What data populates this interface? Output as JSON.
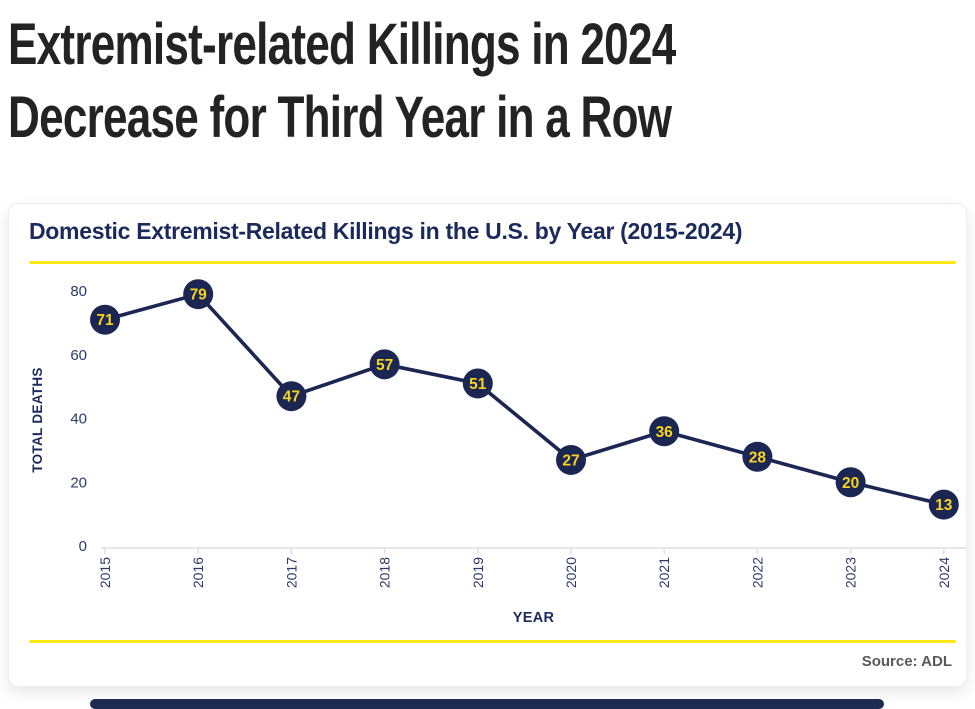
{
  "page": {
    "headline": "Extremist-related Killings in 2024\nDecrease for Third Year in a Row"
  },
  "card": {
    "title": "Domestic Extremist-Related Killings in the U.S. by Year (2015-2024)",
    "source": "Source: ADL"
  },
  "chart_data": {
    "type": "line",
    "title": "Domestic Extremist-Related Killings in the U.S. by Year (2015-2024)",
    "categories": [
      "2015",
      "2016",
      "2017",
      "2018",
      "2019",
      "2020",
      "2021",
      "2022",
      "2023",
      "2024"
    ],
    "values": [
      71,
      79,
      47,
      57,
      51,
      27,
      36,
      28,
      20,
      13
    ],
    "xlabel": "YEAR",
    "ylabel": "TOTAL DEATHS",
    "yticks": [
      0,
      20,
      40,
      60,
      80
    ],
    "ylim": [
      0,
      85
    ],
    "grid": false,
    "legend": "none",
    "point_labels_shown": true,
    "colors": {
      "line": "#1b2653",
      "point_fill": "#1b2653",
      "point_label": "#f8d41e",
      "axis_line": "#dfdfe4",
      "tick_label": "#2b3a68",
      "axis_title": "#1b2a5c",
      "accent_yellow": "#fde714",
      "title_navy": "#1b2a5c",
      "headline_color": "#232323",
      "source_gray": "#58595d"
    }
  }
}
